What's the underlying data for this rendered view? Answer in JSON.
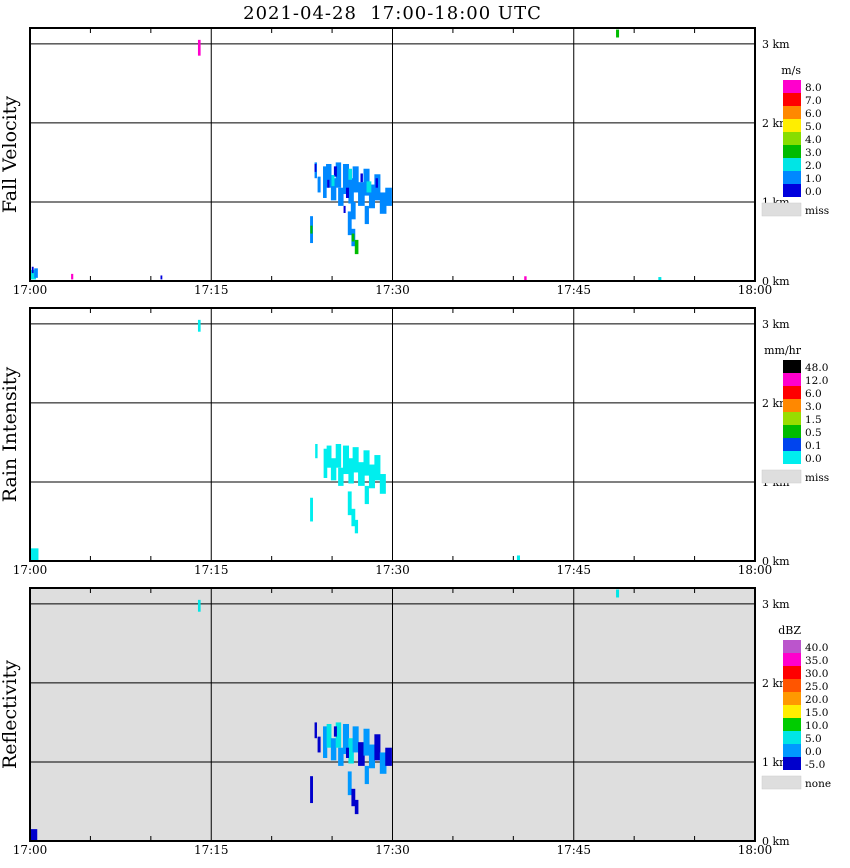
{
  "chart_data": {
    "type": "heatmap",
    "title": "2021-04-28  17:00-18:00 UTC",
    "x_axis": {
      "tick_labels": [
        "17:00",
        "17:15",
        "17:30",
        "17:45",
        "18:00"
      ],
      "tick_minutes": [
        0,
        15,
        30,
        45,
        60
      ],
      "range_minutes": [
        0,
        60
      ],
      "minor_tick_step_minutes": 5
    },
    "y_axis": {
      "tick_labels": [
        "0 km",
        "1 km",
        "2 km",
        "3 km"
      ],
      "tick_km": [
        0,
        1,
        2,
        3
      ],
      "range_km": [
        0,
        3.2
      ]
    },
    "grid": true,
    "panels": [
      {
        "ylabel": "Fall Velocity",
        "background": "#ffffff",
        "colorbar": {
          "title": "m/s",
          "tick_labels": [
            "8.0",
            "7.0",
            "6.0",
            "5.0",
            "4.0",
            "3.0",
            "2.0",
            "1.0",
            "0.0"
          ],
          "colors": [
            "#ff00cc",
            "#ff0000",
            "#ff8800",
            "#ffee00",
            "#88dd00",
            "#00bb00",
            "#00e5e5",
            "#0088ff",
            "#0000dd"
          ],
          "missing": {
            "label": "miss",
            "color": "#dedede"
          }
        },
        "cells": [
          [
            23.55,
            23.75,
            1.3,
            1.5,
            "#0088ff"
          ],
          [
            23.8,
            24.05,
            1.12,
            1.32,
            "#0088ff"
          ],
          [
            24.25,
            24.55,
            1.05,
            1.45,
            "#0088ff"
          ],
          [
            24.5,
            24.95,
            1.18,
            1.48,
            "#0088ff"
          ],
          [
            24.9,
            25.35,
            1.02,
            1.3,
            "#0088ff"
          ],
          [
            25.3,
            25.75,
            1.18,
            1.5,
            "#0088ff"
          ],
          [
            25.5,
            25.95,
            0.95,
            1.18,
            "#0088ff"
          ],
          [
            25.9,
            26.4,
            1.1,
            1.48,
            "#0088ff"
          ],
          [
            26.35,
            26.8,
            0.98,
            1.3,
            "#0088ff"
          ],
          [
            26.7,
            27.2,
            1.12,
            1.45,
            "#0088ff"
          ],
          [
            27.15,
            27.7,
            0.95,
            1.25,
            "#0088ff"
          ],
          [
            27.6,
            28.1,
            1.08,
            1.42,
            "#0088ff"
          ],
          [
            28.05,
            28.55,
            0.92,
            1.22,
            "#0088ff"
          ],
          [
            28.5,
            29.0,
            1.02,
            1.35,
            "#0088ff"
          ],
          [
            28.95,
            29.5,
            0.85,
            1.12,
            "#0088ff"
          ],
          [
            29.4,
            29.95,
            0.95,
            1.18,
            "#0088ff"
          ],
          [
            27.7,
            28.05,
            0.72,
            0.95,
            "#0088ff"
          ],
          [
            26.55,
            26.95,
            0.78,
            1.0,
            "#0088ff"
          ],
          [
            23.55,
            23.7,
            1.38,
            1.48,
            "#0000dd"
          ],
          [
            24.6,
            24.78,
            1.18,
            1.28,
            "#0000dd"
          ],
          [
            25.15,
            25.4,
            1.32,
            1.45,
            "#0000dd"
          ],
          [
            26.15,
            26.4,
            1.05,
            1.18,
            "#0000dd"
          ],
          [
            27.35,
            27.55,
            1.25,
            1.36,
            "#0000dd"
          ],
          [
            25.95,
            26.12,
            0.86,
            0.95,
            "#0000dd"
          ],
          [
            28.6,
            28.8,
            1.18,
            1.3,
            "#0000dd"
          ],
          [
            24.95,
            25.2,
            1.2,
            1.34,
            "#00e5e5"
          ],
          [
            26.35,
            26.65,
            1.28,
            1.42,
            "#00e5e5"
          ],
          [
            27.85,
            28.25,
            1.12,
            1.26,
            "#00e5e5"
          ],
          [
            26.3,
            26.62,
            0.58,
            0.88,
            "#0088ff"
          ],
          [
            26.6,
            26.92,
            0.44,
            0.66,
            "#0088ff"
          ],
          [
            26.88,
            27.18,
            0.34,
            0.52,
            "#00bb00"
          ],
          [
            26.62,
            26.85,
            0.5,
            0.6,
            "#00bb00"
          ],
          [
            23.18,
            23.42,
            0.48,
            0.82,
            "#0088ff"
          ],
          [
            23.2,
            23.38,
            0.6,
            0.7,
            "#00bb00"
          ],
          [
            0.08,
            0.5,
            0.02,
            0.14,
            "#00e5e5"
          ],
          [
            0.35,
            0.65,
            0.04,
            0.16,
            "#0088ff"
          ],
          [
            0.15,
            0.3,
            0.1,
            0.18,
            "#0000dd"
          ],
          [
            3.4,
            3.58,
            0.02,
            0.09,
            "#ff00cc"
          ],
          [
            10.8,
            10.95,
            0.02,
            0.07,
            "#0000dd"
          ],
          [
            40.9,
            41.1,
            0.0,
            0.06,
            "#ff00cc"
          ],
          [
            52.0,
            52.25,
            0.0,
            0.05,
            "#00e5e5"
          ],
          [
            13.9,
            14.12,
            2.85,
            3.05,
            "#ff00cc"
          ],
          [
            48.5,
            48.75,
            3.08,
            3.18,
            "#00bb00"
          ]
        ]
      },
      {
        "ylabel": "Rain Intensity",
        "background": "#ffffff",
        "colorbar": {
          "title": "mm/hr",
          "tick_labels": [
            "48.0",
            "12.0",
            "6.0",
            "3.0",
            "1.5",
            "0.5",
            "0.1",
            "0.0"
          ],
          "colors": [
            "#000000",
            "#ff00cc",
            "#ff0000",
            "#ff8800",
            "#99dd00",
            "#00bb00",
            "#0044ee",
            "#00eeee"
          ],
          "missing": {
            "label": "miss",
            "color": "#dedede"
          }
        },
        "cells": [
          [
            23.6,
            23.8,
            1.3,
            1.48,
            "#00eeee"
          ],
          [
            24.3,
            24.6,
            1.05,
            1.42,
            "#00eeee"
          ],
          [
            24.55,
            24.95,
            1.18,
            1.46,
            "#00eeee"
          ],
          [
            24.9,
            25.35,
            1.02,
            1.3,
            "#00eeee"
          ],
          [
            25.3,
            25.75,
            1.18,
            1.48,
            "#00eeee"
          ],
          [
            25.5,
            25.95,
            0.95,
            1.18,
            "#00eeee"
          ],
          [
            25.9,
            26.4,
            1.1,
            1.46,
            "#00eeee"
          ],
          [
            26.35,
            26.8,
            0.98,
            1.3,
            "#00eeee"
          ],
          [
            26.7,
            27.2,
            1.12,
            1.44,
            "#00eeee"
          ],
          [
            27.15,
            27.7,
            0.95,
            1.25,
            "#00eeee"
          ],
          [
            27.6,
            28.1,
            1.08,
            1.4,
            "#00eeee"
          ],
          [
            28.05,
            28.55,
            0.92,
            1.22,
            "#00eeee"
          ],
          [
            28.5,
            29.0,
            1.02,
            1.34,
            "#00eeee"
          ],
          [
            28.95,
            29.45,
            0.85,
            1.1,
            "#00eeee"
          ],
          [
            27.7,
            28.05,
            0.72,
            0.95,
            "#00eeee"
          ],
          [
            26.3,
            26.62,
            0.58,
            0.88,
            "#00eeee"
          ],
          [
            26.6,
            26.92,
            0.44,
            0.66,
            "#00eeee"
          ],
          [
            26.88,
            27.15,
            0.35,
            0.52,
            "#00eeee"
          ],
          [
            23.18,
            23.42,
            0.5,
            0.8,
            "#00eeee"
          ],
          [
            0.0,
            0.7,
            0.0,
            0.16,
            "#00eeee"
          ],
          [
            13.9,
            14.12,
            2.9,
            3.05,
            "#00eeee"
          ],
          [
            40.3,
            40.55,
            0.0,
            0.07,
            "#00eeee"
          ]
        ]
      },
      {
        "ylabel": "Reflectivity",
        "background": "#dedede",
        "colorbar": {
          "title": "dBZ",
          "tick_labels": [
            "40.0",
            "35.0",
            "30.0",
            "25.0",
            "20.0",
            "15.0",
            "10.0",
            "5.0",
            "0.0",
            "-5.0"
          ],
          "colors": [
            "#bb55cc",
            "#ff00cc",
            "#ff0000",
            "#ff5500",
            "#ff9900",
            "#ffee00",
            "#00cc00",
            "#00e5e5",
            "#0099ff",
            "#0000cc"
          ],
          "missing": {
            "label": "none",
            "color": "#dedede"
          }
        },
        "cells": [
          [
            23.55,
            23.75,
            1.3,
            1.5,
            "#0000cc"
          ],
          [
            23.8,
            24.05,
            1.12,
            1.32,
            "#0000cc"
          ],
          [
            24.25,
            24.6,
            1.05,
            1.45,
            "#0099ff"
          ],
          [
            24.55,
            24.95,
            1.18,
            1.48,
            "#00e5e5"
          ],
          [
            24.9,
            25.35,
            1.02,
            1.3,
            "#0099ff"
          ],
          [
            25.3,
            25.75,
            1.18,
            1.5,
            "#00e5e5"
          ],
          [
            25.5,
            25.95,
            0.95,
            1.18,
            "#0099ff"
          ],
          [
            25.9,
            26.4,
            1.1,
            1.48,
            "#0099ff"
          ],
          [
            26.35,
            26.8,
            0.98,
            1.3,
            "#00e5e5"
          ],
          [
            26.7,
            27.2,
            1.12,
            1.45,
            "#0099ff"
          ],
          [
            27.15,
            27.7,
            0.95,
            1.25,
            "#0000cc"
          ],
          [
            27.6,
            28.1,
            1.08,
            1.42,
            "#0099ff"
          ],
          [
            28.05,
            28.55,
            0.92,
            1.22,
            "#0099ff"
          ],
          [
            28.5,
            29.0,
            1.02,
            1.35,
            "#0000cc"
          ],
          [
            28.95,
            29.5,
            0.85,
            1.12,
            "#0099ff"
          ],
          [
            29.4,
            29.95,
            0.95,
            1.18,
            "#0000cc"
          ],
          [
            27.7,
            28.05,
            0.72,
            0.95,
            "#0099ff"
          ],
          [
            25.15,
            25.4,
            1.32,
            1.45,
            "#0000cc"
          ],
          [
            26.15,
            26.4,
            1.05,
            1.18,
            "#0000cc"
          ],
          [
            26.3,
            26.62,
            0.58,
            0.88,
            "#0099ff"
          ],
          [
            26.6,
            26.92,
            0.44,
            0.66,
            "#0000cc"
          ],
          [
            26.88,
            27.18,
            0.34,
            0.52,
            "#0000cc"
          ],
          [
            23.18,
            23.42,
            0.48,
            0.82,
            "#0000cc"
          ],
          [
            0.0,
            0.6,
            0.0,
            0.15,
            "#0000cc"
          ],
          [
            13.9,
            14.12,
            2.9,
            3.05,
            "#00e5e5"
          ],
          [
            48.5,
            48.75,
            3.08,
            3.18,
            "#00e5e5"
          ]
        ]
      }
    ]
  }
}
